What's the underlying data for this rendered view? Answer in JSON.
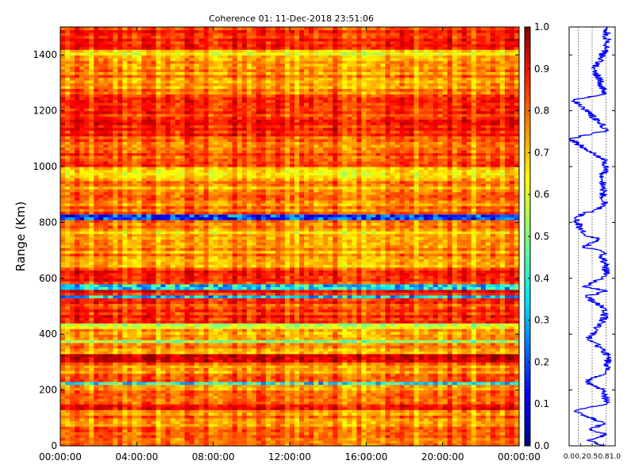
{
  "chart_data": [
    {
      "type": "heatmap",
      "title": "Coherence 01: 11-Dec-2018 23:51:06",
      "ylabel": "Range (Km)",
      "xlabel": "",
      "xlim": [
        0,
        24
      ],
      "ylim": [
        0,
        1500
      ],
      "x_tick_labels": [
        "00:00:00",
        "04:00:00",
        "08:00:00",
        "12:00:00",
        "16:00:00",
        "20:00:00",
        "00:00:00"
      ],
      "y_tick_labels": [
        "0",
        "200",
        "400",
        "600",
        "800",
        "1000",
        "1200",
        "1400"
      ],
      "colorscale": "jet",
      "clim": [
        0,
        1
      ],
      "colorbar_tick_labels": [
        "0.0",
        "0.1",
        "0.2",
        "0.3",
        "0.4",
        "0.5",
        "0.6",
        "0.7",
        "0.8",
        "0.9",
        "1.0"
      ],
      "range_profile": [
        {
          "range_min": 0,
          "range_max": 30,
          "value": 0.8
        },
        {
          "range_min": 30,
          "range_max": 130,
          "value": 0.76
        },
        {
          "range_min": 130,
          "range_max": 150,
          "value": 0.86
        },
        {
          "range_min": 150,
          "range_max": 220,
          "value": 0.74
        },
        {
          "range_min": 220,
          "range_max": 235,
          "value": 0.38
        },
        {
          "range_min": 235,
          "range_max": 300,
          "value": 0.74
        },
        {
          "range_min": 300,
          "range_max": 330,
          "value": 0.88
        },
        {
          "range_min": 330,
          "range_max": 370,
          "value": 0.72
        },
        {
          "range_min": 370,
          "range_max": 385,
          "value": 0.48
        },
        {
          "range_min": 385,
          "range_max": 420,
          "value": 0.74
        },
        {
          "range_min": 420,
          "range_max": 440,
          "value": 0.58
        },
        {
          "range_min": 440,
          "range_max": 530,
          "value": 0.82
        },
        {
          "range_min": 530,
          "range_max": 545,
          "value": 0.33
        },
        {
          "range_min": 545,
          "range_max": 560,
          "value": 0.86
        },
        {
          "range_min": 560,
          "range_max": 580,
          "value": 0.35
        },
        {
          "range_min": 580,
          "range_max": 640,
          "value": 0.84
        },
        {
          "range_min": 640,
          "range_max": 720,
          "value": 0.72
        },
        {
          "range_min": 720,
          "range_max": 780,
          "value": 0.68
        },
        {
          "range_min": 780,
          "range_max": 812,
          "value": 0.76
        },
        {
          "range_min": 812,
          "range_max": 828,
          "value": 0.18
        },
        {
          "range_min": 828,
          "range_max": 900,
          "value": 0.76
        },
        {
          "range_min": 900,
          "range_max": 960,
          "value": 0.72
        },
        {
          "range_min": 960,
          "range_max": 1000,
          "value": 0.66
        },
        {
          "range_min": 1000,
          "range_max": 1060,
          "value": 0.8
        },
        {
          "range_min": 1060,
          "range_max": 1110,
          "value": 0.76
        },
        {
          "range_min": 1110,
          "range_max": 1190,
          "value": 0.84
        },
        {
          "range_min": 1190,
          "range_max": 1260,
          "value": 0.86
        },
        {
          "range_min": 1260,
          "range_max": 1380,
          "value": 0.74
        },
        {
          "range_min": 1380,
          "range_max": 1420,
          "value": 0.66
        },
        {
          "range_min": 1420,
          "range_max": 1500,
          "value": 0.84
        }
      ]
    },
    {
      "type": "line",
      "title": "",
      "xlabel": "",
      "ylabel": "",
      "xlim": [
        0,
        1
      ],
      "ylim": [
        0,
        1500
      ],
      "x_tick_labels": [
        "0.0",
        "0.2",
        "0.5",
        "0.8",
        "1.0"
      ],
      "series": [
        {
          "color": "#0000ff",
          "points": [
            {
              "range": 0,
              "value": 0.78
            },
            {
              "range": 20,
              "value": 0.4
            },
            {
              "range": 40,
              "value": 0.8
            },
            {
              "range": 60,
              "value": 0.45
            },
            {
              "range": 80,
              "value": 0.78
            },
            {
              "range": 125,
              "value": 0.1
            },
            {
              "range": 150,
              "value": 0.82
            },
            {
              "range": 200,
              "value": 0.75
            },
            {
              "range": 229,
              "value": 0.35
            },
            {
              "range": 260,
              "value": 0.8
            },
            {
              "range": 320,
              "value": 0.85
            },
            {
              "range": 350,
              "value": 0.7
            },
            {
              "range": 380,
              "value": 0.4
            },
            {
              "range": 440,
              "value": 0.72
            },
            {
              "range": 490,
              "value": 0.8
            },
            {
              "range": 535,
              "value": 0.35
            },
            {
              "range": 555,
              "value": 0.85
            },
            {
              "range": 570,
              "value": 0.3
            },
            {
              "range": 610,
              "value": 0.82
            },
            {
              "range": 700,
              "value": 0.7
            },
            {
              "range": 710,
              "value": 0.3
            },
            {
              "range": 740,
              "value": 0.65
            },
            {
              "range": 760,
              "value": 0.3
            },
            {
              "range": 820,
              "value": 0.15
            },
            {
              "range": 860,
              "value": 0.78
            },
            {
              "range": 950,
              "value": 0.72
            },
            {
              "range": 1020,
              "value": 0.8
            },
            {
              "range": 1100,
              "value": 0.0
            },
            {
              "range": 1130,
              "value": 0.85
            },
            {
              "range": 1240,
              "value": 0.1
            },
            {
              "range": 1260,
              "value": 0.8
            },
            {
              "range": 1350,
              "value": 0.55
            },
            {
              "range": 1420,
              "value": 0.8
            },
            {
              "range": 1500,
              "value": 0.82
            }
          ]
        }
      ]
    }
  ]
}
